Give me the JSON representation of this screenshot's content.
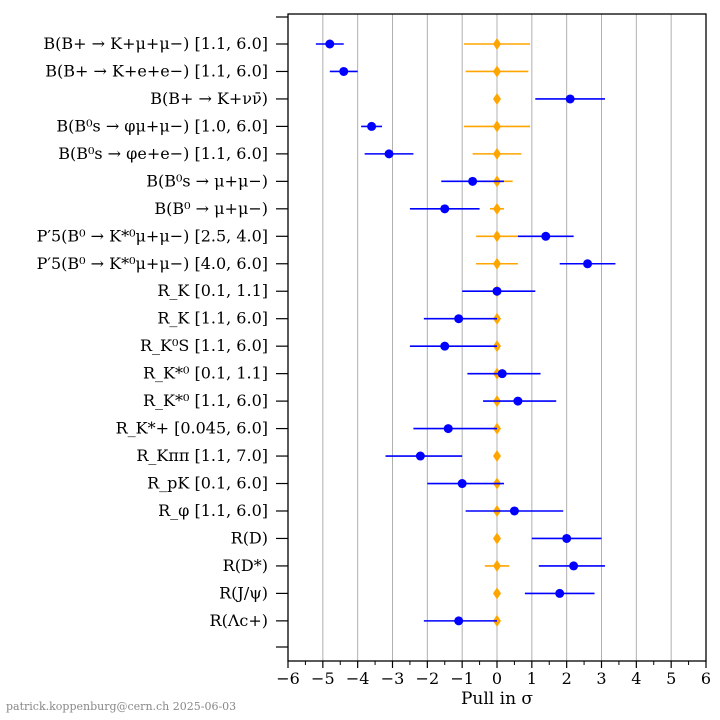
{
  "chart_data": {
    "type": "scatter",
    "xlabel": "Pull in σ",
    "xlim": [
      -6,
      6
    ],
    "xticks": [
      -6,
      -5,
      -4,
      -3,
      -2,
      -1,
      0,
      1,
      2,
      3,
      4,
      5,
      6
    ],
    "grid": "vertical",
    "categories": [
      "B(B+ → K+μ+μ−) [1.1, 6.0]",
      "B(B+ → K+e+e−) [1.1, 6.0]",
      "B(B+ → K+νν̄)",
      "B(B⁰s → φμ+μ−) [1.0, 6.0]",
      "B(B⁰s → φe+e−) [1.1, 6.0]",
      "B(B⁰s → μ+μ−)",
      "B(B⁰ → μ+μ−)",
      "P′5(B⁰ → K*⁰μ+μ−) [2.5, 4.0]",
      "P′5(B⁰ → K*⁰μ+μ−) [4.0, 6.0]",
      "R_K [0.1, 1.1]",
      "R_K [1.1, 6.0]",
      "R_K⁰S [1.1, 6.0]",
      "R_K*⁰ [0.1, 1.1]",
      "R_K*⁰ [1.1, 6.0]",
      "R_K*+ [0.045, 6.0]",
      "R_Kππ [1.1, 7.0]",
      "R_pK [0.1, 6.0]",
      "R_φ [1.1, 6.0]",
      "R(D)",
      "R(D*)",
      "R(J/ψ)",
      "R(Λc+)"
    ],
    "series": [
      {
        "color": "#0000ff",
        "marker": "circle",
        "values": [
          -4.8,
          -4.4,
          2.1,
          -3.6,
          -3.1,
          -0.7,
          -1.5,
          1.4,
          2.6,
          0.0,
          -1.1,
          -1.5,
          0.15,
          0.6,
          -1.4,
          -2.2,
          -1.0,
          0.5,
          2.0,
          2.2,
          1.8,
          -1.1
        ],
        "err_low": [
          0.4,
          0.4,
          1.0,
          0.3,
          0.7,
          0.9,
          1.0,
          0.8,
          0.8,
          1.0,
          1.0,
          1.0,
          1.0,
          1.0,
          1.0,
          1.0,
          1.0,
          1.4,
          1.0,
          1.0,
          1.0,
          1.0
        ],
        "err_high": [
          0.4,
          0.4,
          1.0,
          0.3,
          0.7,
          0.9,
          1.0,
          0.8,
          0.8,
          1.1,
          1.1,
          1.5,
          1.1,
          1.1,
          1.4,
          1.2,
          1.2,
          1.4,
          1.0,
          0.9,
          1.0,
          1.1
        ]
      },
      {
        "color": "#ffa500",
        "marker": "diamond",
        "values": [
          0,
          0,
          0,
          0,
          0,
          0,
          0,
          0,
          0,
          0,
          0,
          0,
          0,
          0,
          0,
          0,
          0,
          0,
          0,
          0,
          0,
          0
        ],
        "err": [
          0.95,
          0.9,
          0.0,
          0.95,
          0.7,
          0.45,
          0.2,
          0.6,
          0.6,
          0.0,
          0.0,
          0.0,
          0.0,
          0.0,
          0.0,
          0.0,
          0.0,
          0.0,
          0.0,
          0.35,
          0.0,
          0.0
        ]
      }
    ]
  },
  "credit": "patrick.koppenburg@cern.ch  2025-06-03"
}
